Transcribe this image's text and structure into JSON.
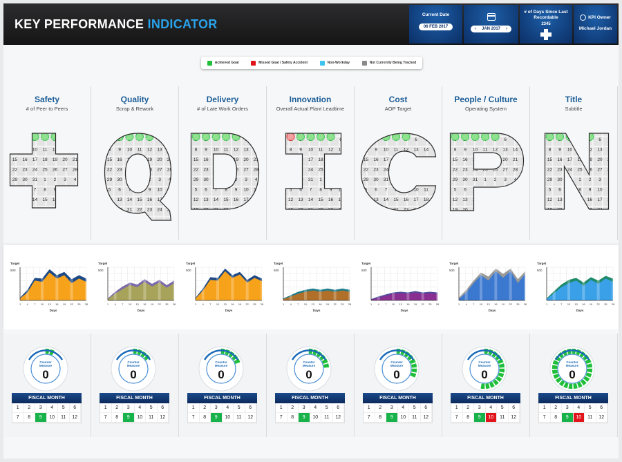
{
  "header": {
    "title_main": "KEY PERFORMANCE",
    "title_accent": "INDICATOR",
    "current_date_label": "Current Date",
    "current_date_value": "06 FEB 2017",
    "month_value": "JAN 2017",
    "month_prev": "‹",
    "month_next": "›",
    "days_since_label": "# of Days Since Last Recordable",
    "days_since_value": "2345",
    "owner_label": "KPI Owner",
    "owner_name": "Michael Jordan"
  },
  "legend": [
    {
      "label": "Achieved Goal",
      "color": "#1fbf3a"
    },
    {
      "label": "Missed Goal / Safety Accident",
      "color": "#e0141a"
    },
    {
      "label": "Non-Workday",
      "color": "#3ec3ee"
    },
    {
      "label": "Not Currently Being Tracked",
      "color": "#8a8a8a"
    }
  ],
  "kpis": [
    {
      "title": "Safety",
      "subtitle": "# of Peer to Peers",
      "letter": "+",
      "chart_color": "#f7a21b",
      "chart_top": "#1d4a86"
    },
    {
      "title": "Quality",
      "subtitle": "Scrap & Rework",
      "letter": "Q",
      "chart_color": "#a8a35a",
      "chart_top": "#7b6aa8"
    },
    {
      "title": "Delivery",
      "subtitle": "# of Late Work Orders",
      "letter": "D",
      "chart_color": "#f7a21b",
      "chart_top": "#1d4a86"
    },
    {
      "title": "Innovation",
      "subtitle": "Overall Actual Plant Leadtime",
      "letter": "I",
      "chart_color": "#b0702a",
      "chart_top": "#1f7d8a"
    },
    {
      "title": "Cost",
      "subtitle": "AOP Target",
      "letter": "C",
      "chart_color": "#8a2f92",
      "chart_top": "#4d4d9a"
    },
    {
      "title": "People / Culture",
      "subtitle": "Operating System",
      "letter": "P",
      "chart_color": "#3b78d0",
      "chart_top": "#999999"
    },
    {
      "title": "Title",
      "subtitle": "Subtitle",
      "letter": "N",
      "chart_color": "#3aa0e8",
      "chart_top": "#1f8a6a"
    }
  ],
  "chart_data": [
    {
      "type": "area",
      "ylabel": "Target",
      "xlabel": "Days",
      "y_tick": "500",
      "x": [
        1,
        4,
        7,
        10,
        13,
        16,
        19,
        22,
        25,
        28
      ],
      "values": [
        30,
        120,
        300,
        280,
        420,
        330,
        380,
        260,
        330,
        280
      ],
      "top": [
        40,
        160,
        340,
        330,
        470,
        380,
        430,
        320,
        380,
        330
      ]
    },
    {
      "type": "area",
      "ylabel": "Target",
      "xlabel": "Days",
      "y_tick": "500",
      "x": [
        1,
        4,
        7,
        10,
        13,
        16,
        19,
        22,
        25,
        28
      ],
      "values": [
        20,
        100,
        170,
        230,
        200,
        280,
        210,
        270,
        190,
        260
      ],
      "top": [
        30,
        130,
        210,
        270,
        240,
        320,
        250,
        310,
        230,
        300
      ]
    },
    {
      "type": "area",
      "ylabel": "Target",
      "xlabel": "Days",
      "y_tick": "500",
      "x": [
        1,
        4,
        7,
        10,
        13,
        16,
        19,
        22,
        25,
        28
      ],
      "values": [
        30,
        150,
        310,
        300,
        440,
        340,
        390,
        270,
        340,
        290
      ],
      "top": [
        40,
        180,
        350,
        340,
        480,
        380,
        430,
        310,
        380,
        330
      ]
    },
    {
      "type": "area",
      "ylabel": "Target",
      "xlabel": "Days",
      "y_tick": "500",
      "x": [
        1,
        4,
        7,
        10,
        13,
        16,
        19,
        22,
        25,
        28
      ],
      "values": [
        20,
        60,
        100,
        130,
        150,
        130,
        150,
        130,
        150,
        130
      ],
      "top": [
        30,
        80,
        130,
        160,
        180,
        160,
        180,
        160,
        180,
        160
      ]
    },
    {
      "type": "area",
      "ylabel": "Target",
      "xlabel": "Days",
      "y_tick": "500",
      "x": [
        1,
        4,
        7,
        10,
        13,
        16,
        19,
        22,
        25,
        28
      ],
      "values": [
        10,
        40,
        70,
        100,
        110,
        100,
        120,
        100,
        110,
        100
      ],
      "top": [
        20,
        60,
        90,
        120,
        130,
        120,
        140,
        120,
        130,
        120
      ]
    },
    {
      "type": "area",
      "ylabel": "Target",
      "xlabel": "Days",
      "y_tick": "500",
      "x": [
        1,
        4,
        7,
        10,
        13,
        16,
        19,
        22,
        25,
        28
      ],
      "values": [
        20,
        120,
        260,
        380,
        300,
        440,
        340,
        440,
        260,
        400
      ],
      "top": [
        40,
        160,
        300,
        420,
        360,
        480,
        400,
        480,
        320,
        440
      ]
    },
    {
      "type": "area",
      "ylabel": "Target",
      "xlabel": "Days",
      "y_tick": "500",
      "x": [
        1,
        4,
        7,
        10,
        13,
        16,
        19,
        22,
        25,
        28
      ],
      "values": [
        20,
        110,
        200,
        260,
        300,
        220,
        310,
        250,
        330,
        280
      ],
      "top": [
        30,
        140,
        240,
        310,
        340,
        270,
        350,
        300,
        370,
        330
      ]
    }
  ],
  "counter": {
    "label_line1": "Counter",
    "label_line2": "Measure",
    "value": "0"
  },
  "fiscal": {
    "head": "FISCAL MONTH",
    "months": [
      "1",
      "2",
      "3",
      "4",
      "5",
      "6",
      "7",
      "8",
      "9",
      "10",
      "11",
      "12"
    ],
    "status": [
      [
        "n",
        "n",
        "n",
        "n",
        "n",
        "n",
        "n",
        "n",
        "g",
        "n",
        "n",
        "n"
      ],
      [
        "n",
        "n",
        "n",
        "n",
        "n",
        "n",
        "n",
        "n",
        "g",
        "n",
        "n",
        "n"
      ],
      [
        "n",
        "n",
        "n",
        "n",
        "n",
        "n",
        "n",
        "n",
        "g",
        "n",
        "n",
        "n"
      ],
      [
        "n",
        "n",
        "n",
        "n",
        "n",
        "n",
        "n",
        "n",
        "g",
        "n",
        "n",
        "n"
      ],
      [
        "n",
        "n",
        "n",
        "n",
        "n",
        "n",
        "n",
        "n",
        "g",
        "n",
        "n",
        "n"
      ],
      [
        "n",
        "n",
        "n",
        "n",
        "n",
        "n",
        "n",
        "n",
        "g",
        "r",
        "n",
        "n"
      ],
      [
        "n",
        "n",
        "n",
        "n",
        "n",
        "n",
        "n",
        "n",
        "g",
        "r",
        "n",
        "n"
      ]
    ],
    "gauge_fill": [
      0.1,
      0.15,
      0.2,
      0.25,
      0.35,
      0.55,
      1.0
    ]
  }
}
